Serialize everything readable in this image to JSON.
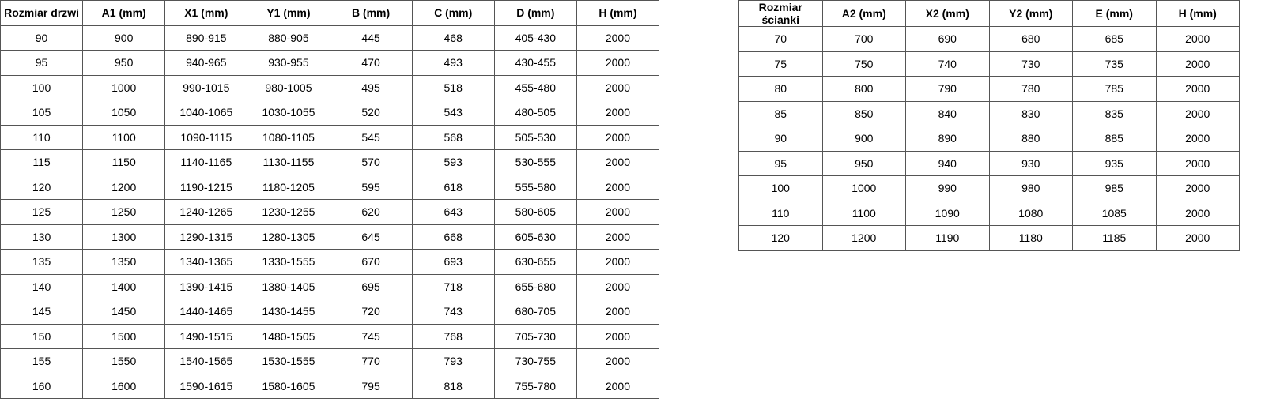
{
  "door_table": {
    "headers": [
      "Rozmiar drzwi",
      "A1 (mm)",
      "X1 (mm)",
      "Y1 (mm)",
      "B (mm)",
      "C (mm)",
      "D (mm)",
      "H (mm)"
    ],
    "rows": [
      [
        "90",
        "900",
        "890-915",
        "880-905",
        "445",
        "468",
        "405-430",
        "2000"
      ],
      [
        "95",
        "950",
        "940-965",
        "930-955",
        "470",
        "493",
        "430-455",
        "2000"
      ],
      [
        "100",
        "1000",
        "990-1015",
        "980-1005",
        "495",
        "518",
        "455-480",
        "2000"
      ],
      [
        "105",
        "1050",
        "1040-1065",
        "1030-1055",
        "520",
        "543",
        "480-505",
        "2000"
      ],
      [
        "110",
        "1100",
        "1090-1115",
        "1080-1105",
        "545",
        "568",
        "505-530",
        "2000"
      ],
      [
        "115",
        "1150",
        "1140-1165",
        "1130-1155",
        "570",
        "593",
        "530-555",
        "2000"
      ],
      [
        "120",
        "1200",
        "1190-1215",
        "1180-1205",
        "595",
        "618",
        "555-580",
        "2000"
      ],
      [
        "125",
        "1250",
        "1240-1265",
        "1230-1255",
        "620",
        "643",
        "580-605",
        "2000"
      ],
      [
        "130",
        "1300",
        "1290-1315",
        "1280-1305",
        "645",
        "668",
        "605-630",
        "2000"
      ],
      [
        "135",
        "1350",
        "1340-1365",
        "1330-1555",
        "670",
        "693",
        "630-655",
        "2000"
      ],
      [
        "140",
        "1400",
        "1390-1415",
        "1380-1405",
        "695",
        "718",
        "655-680",
        "2000"
      ],
      [
        "145",
        "1450",
        "1440-1465",
        "1430-1455",
        "720",
        "743",
        "680-705",
        "2000"
      ],
      [
        "150",
        "1500",
        "1490-1515",
        "1480-1505",
        "745",
        "768",
        "705-730",
        "2000"
      ],
      [
        "155",
        "1550",
        "1540-1565",
        "1530-1555",
        "770",
        "793",
        "730-755",
        "2000"
      ],
      [
        "160",
        "1600",
        "1590-1615",
        "1580-1605",
        "795",
        "818",
        "755-780",
        "2000"
      ]
    ]
  },
  "wall_table": {
    "headers": [
      "Rozmiar ścianki",
      "A2 (mm)",
      "X2 (mm)",
      "Y2 (mm)",
      "E (mm)",
      "H (mm)"
    ],
    "rows": [
      [
        "70",
        "700",
        "690",
        "680",
        "685",
        "2000"
      ],
      [
        "75",
        "750",
        "740",
        "730",
        "735",
        "2000"
      ],
      [
        "80",
        "800",
        "790",
        "780",
        "785",
        "2000"
      ],
      [
        "85",
        "850",
        "840",
        "830",
        "835",
        "2000"
      ],
      [
        "90",
        "900",
        "890",
        "880",
        "885",
        "2000"
      ],
      [
        "95",
        "950",
        "940",
        "930",
        "935",
        "2000"
      ],
      [
        "100",
        "1000",
        "990",
        "980",
        "985",
        "2000"
      ],
      [
        "110",
        "1100",
        "1090",
        "1080",
        "1085",
        "2000"
      ],
      [
        "120",
        "1200",
        "1190",
        "1180",
        "1185",
        "2000"
      ]
    ]
  }
}
